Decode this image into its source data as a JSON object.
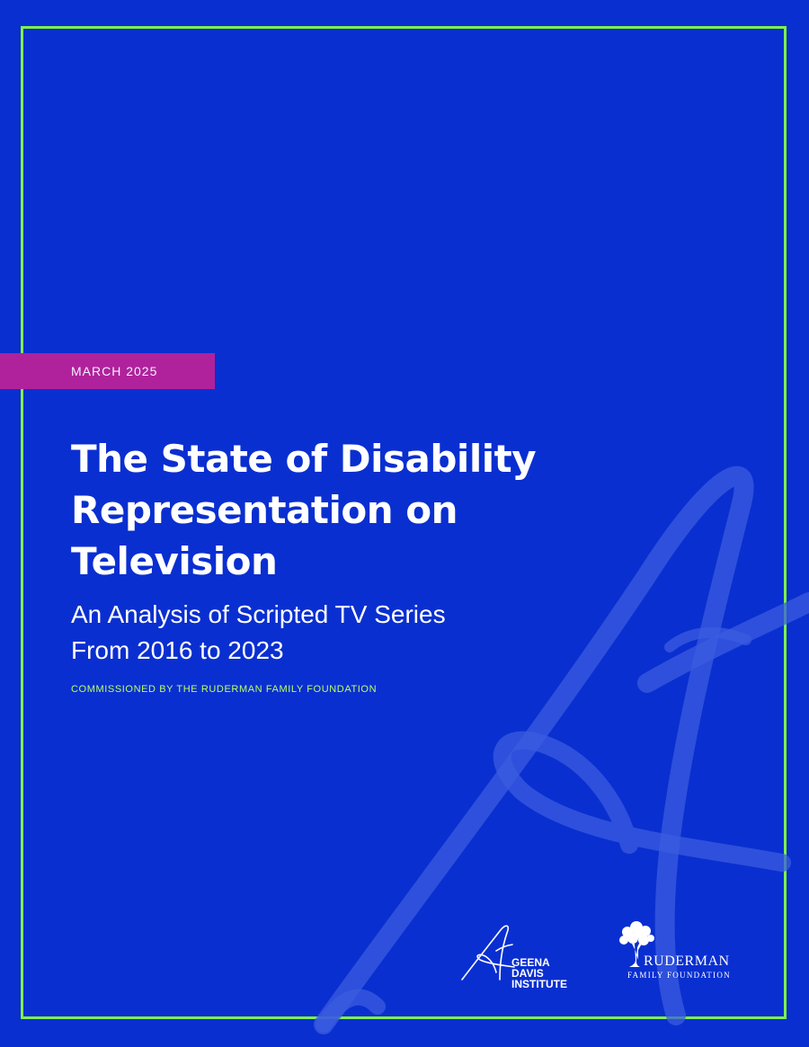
{
  "cover": {
    "date": "MARCH 2025",
    "title": "The State of Disability Representation on Television",
    "subtitle": "An Analysis of Scripted TV Series From 2016 to 2023",
    "commission": "COMMISSIONED BY THE RUDERMAN FAMILY FOUNDATION"
  },
  "logos": {
    "geena_davis": {
      "text": "GEENA DAVIS INSTITUTE",
      "icon": "signature-g-icon"
    },
    "ruderman": {
      "name": "RUDERMAN",
      "sub": "FAMILY FOUNDATION",
      "icon": "tree-icon"
    }
  },
  "colors": {
    "background": "#0a2fd0",
    "frame": "#7ef24a",
    "date_tab": "#b0229c",
    "commission_text": "#b9ff66",
    "text": "#ffffff"
  }
}
